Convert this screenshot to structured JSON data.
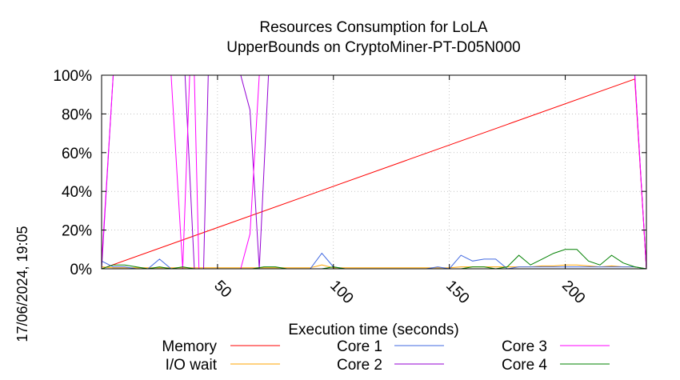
{
  "chart_data": {
    "type": "line",
    "title": "Resources Consumption for LoLA",
    "subtitle": "UpperBounds on CryptoMiner-PT-D05N000",
    "xlabel": "Execution time (seconds)",
    "ylabel": "",
    "side_label": "17/06/2024, 19:05",
    "xlim": [
      0,
      235
    ],
    "ylim": [
      0,
      100
    ],
    "xticks": [
      50,
      100,
      150,
      200
    ],
    "yticks": [
      0,
      20,
      40,
      60,
      80,
      100
    ],
    "ytick_labels": [
      "0%",
      "20%",
      "40%",
      "60%",
      "80%",
      "100%"
    ],
    "grid": true,
    "legend_position": "bottom",
    "series": [
      {
        "name": "Memory",
        "color": "#ff0000",
        "x": [
          0,
          230,
          235
        ],
        "y": [
          0,
          98,
          0
        ]
      },
      {
        "name": "I/O wait",
        "color": "#ffa500",
        "x": [
          0,
          5,
          10,
          15,
          20,
          25,
          30,
          35,
          40,
          45,
          50,
          55,
          60,
          65,
          70,
          75,
          80,
          85,
          90,
          95,
          100,
          105,
          110,
          115,
          120,
          125,
          130,
          135,
          140,
          145,
          150,
          155,
          160,
          165,
          170,
          175,
          180,
          185,
          190,
          195,
          200,
          205,
          210,
          215,
          220,
          225,
          230,
          235
        ],
        "y": [
          1,
          0.5,
          0.5,
          0.5,
          0.5,
          0.5,
          0.5,
          0.5,
          0.5,
          0.5,
          0.5,
          0.5,
          0.5,
          0.5,
          0.5,
          0.5,
          0.5,
          0.5,
          0.5,
          2,
          0.5,
          0.5,
          0.5,
          0.5,
          0.5,
          0.5,
          0.5,
          0.5,
          0.5,
          0.5,
          0.5,
          1,
          1,
          1,
          1,
          1,
          1,
          1,
          1.5,
          1.5,
          2,
          2,
          1.5,
          1,
          1.5,
          1,
          1,
          0
        ]
      },
      {
        "name": "Core 1",
        "color": "#4169e1",
        "x": [
          0,
          5,
          10,
          15,
          20,
          25,
          30,
          35,
          40,
          45,
          50,
          55,
          60,
          65,
          70,
          75,
          80,
          85,
          90,
          95,
          100,
          105,
          110,
          115,
          120,
          125,
          130,
          135,
          140,
          145,
          150,
          155,
          160,
          165,
          170,
          175,
          180,
          185,
          190,
          195,
          200,
          205,
          210,
          215,
          220,
          225,
          230,
          235
        ],
        "y": [
          4,
          1,
          1,
          0,
          0,
          5,
          0,
          0,
          0,
          0,
          0,
          0,
          0,
          0,
          0,
          0,
          0,
          0,
          0,
          8,
          1,
          0,
          0,
          0,
          0,
          0,
          0,
          0,
          0,
          1,
          0,
          7,
          4,
          5,
          5,
          0,
          1,
          1,
          1,
          1,
          1,
          1,
          1,
          1,
          1,
          1,
          1,
          0
        ]
      },
      {
        "name": "Core 2",
        "color": "#9400d3",
        "x": [
          0,
          5,
          36,
          40,
          44,
          46,
          50,
          55,
          60,
          64,
          68,
          72,
          230,
          235
        ],
        "y": [
          0,
          100,
          100,
          0,
          0,
          100,
          100,
          100,
          100,
          82,
          0,
          100,
          100,
          0
        ]
      },
      {
        "name": "Core 3",
        "color": "#ff00ff",
        "x": [
          0,
          5,
          10,
          15,
          20,
          25,
          30,
          35,
          38,
          40,
          42,
          44,
          50,
          55,
          60,
          64,
          68,
          72,
          230,
          235
        ],
        "y": [
          3,
          100,
          100,
          100,
          100,
          100,
          100,
          0,
          100,
          100,
          0,
          0,
          0,
          0,
          0,
          18,
          100,
          100,
          100,
          0
        ]
      },
      {
        "name": "Core 4",
        "color": "#008000",
        "x": [
          0,
          5,
          10,
          15,
          20,
          25,
          30,
          35,
          40,
          45,
          50,
          55,
          60,
          65,
          70,
          75,
          80,
          85,
          90,
          95,
          100,
          105,
          110,
          115,
          120,
          125,
          130,
          135,
          140,
          145,
          150,
          155,
          160,
          165,
          170,
          175,
          180,
          185,
          190,
          195,
          200,
          205,
          210,
          215,
          220,
          225,
          230,
          235
        ],
        "y": [
          0,
          2,
          2,
          1,
          0,
          1,
          0,
          1,
          0,
          0,
          0,
          0,
          0,
          0,
          1,
          1,
          0,
          0,
          0,
          0,
          1,
          0,
          0,
          0,
          0,
          0,
          0,
          0,
          0,
          0,
          0,
          0,
          1,
          1,
          0,
          1,
          7,
          2,
          5,
          8,
          10,
          10,
          4,
          2,
          7,
          3,
          1,
          0
        ]
      }
    ]
  }
}
